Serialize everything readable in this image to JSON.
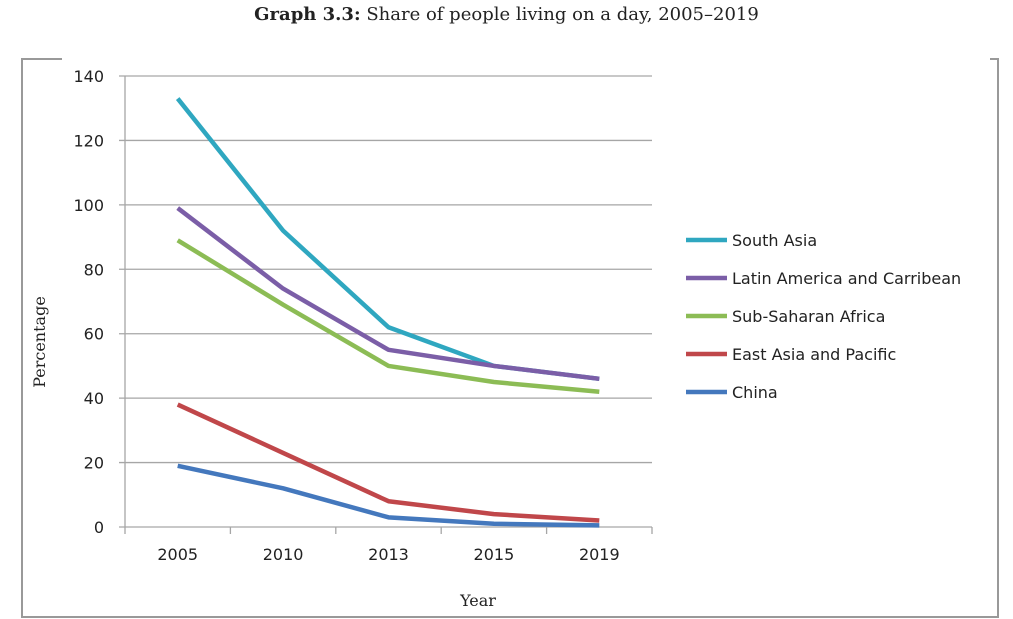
{
  "chart_data": {
    "type": "line",
    "title_bold": "Graph 3.3:",
    "title": "Share of people living on a day, 2005–2019",
    "xlabel": "Year",
    "ylabel": "Percentage",
    "categories": [
      "2005",
      "2010",
      "2013",
      "2015",
      "2019"
    ],
    "ylim": [
      0,
      140
    ],
    "yticks": [
      0,
      20,
      40,
      60,
      80,
      100,
      120,
      140
    ],
    "grid": true,
    "legend": "right",
    "series": [
      {
        "name": "South Asia",
        "color": "#2fa7c0",
        "values": [
          133,
          92,
          62,
          50,
          46
        ]
      },
      {
        "name": "Latin America and Carribean",
        "color": "#7b5ea7",
        "values": [
          99,
          74,
          55,
          50,
          46
        ]
      },
      {
        "name": "Sub-Saharan Africa",
        "color": "#8cbc55",
        "values": [
          89,
          69,
          50,
          45,
          42
        ]
      },
      {
        "name": "East Asia and Pacific",
        "color": "#c0474a",
        "values": [
          38,
          23,
          8,
          4,
          2
        ]
      },
      {
        "name": "China",
        "color": "#4478bd",
        "values": [
          19,
          12,
          3,
          1,
          0.5
        ]
      }
    ]
  }
}
